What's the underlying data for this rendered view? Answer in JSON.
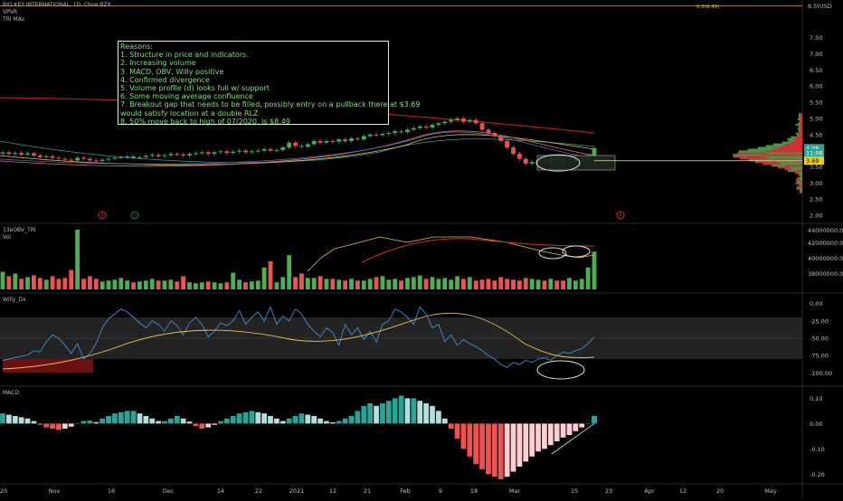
{
  "header": {
    "symbol_line": "BIO KEY INTERNATIONAL, 1D, Cboe BZX",
    "indicator1": "VPVR",
    "indicator2": "TRI MAs",
    "target_label": "0.5(8.49)"
  },
  "currency": "USD",
  "reasons": {
    "title": "Reasons:",
    "lines": [
      "1. Structure in price and indicators.",
      "2. Increasing volume",
      "3. MACD, OBV, Willy positive",
      "4. Confirmed divergence",
      "5. Volume profile (d) looks full w/ support",
      "6. Some moving average confluence",
      "7. Breakout gap that needs to be filled, possibly entry on a pullback there at $3.69",
      "would satisfy location at a double RLZ",
      "8. 50% move back to high of 07/2020, is $8.49"
    ]
  },
  "price_axis": {
    "top_label": "8.5(USD",
    "ticks": [
      "7.50",
      "7.00",
      "6.50",
      "6.00",
      "5.50",
      "5.00",
      "4.50",
      "4.00",
      "3.50",
      "3.00",
      "2.50",
      "2.00"
    ],
    "badges": [
      {
        "text": "4.08",
        "color": "#26a69a"
      },
      {
        "text": "11:08",
        "color": "#26a69a"
      },
      {
        "text": "3.69",
        "color": "#f5d000"
      }
    ]
  },
  "obv_panel": {
    "label1": "13eOBV_TRI",
    "label2": "Vol",
    "ticks": [
      "44000000.00",
      "42000000.00",
      "40000000.00",
      "38000000.00"
    ]
  },
  "willy_panel": {
    "label": "Willy_Dx",
    "ticks": [
      "0.00",
      "-25.00",
      "-50.00",
      "-75.00",
      "-100.00"
    ]
  },
  "macd_panel": {
    "label": "MACD",
    "ticks": [
      "0.10",
      "0.00",
      "-0.10",
      "-0.20"
    ]
  },
  "time_axis": [
    "20",
    "Nov",
    "16",
    "Dec",
    "14",
    "22",
    "2021",
    "12",
    "21",
    "Feb",
    "9",
    "18",
    "Mar",
    "15",
    "23",
    "Apr",
    "12",
    "20",
    "May"
  ],
  "event_markers": [
    "E",
    "D",
    "E"
  ],
  "colors": {
    "up": "#26a69a",
    "down": "#ef5350",
    "bright_up": "#4caf50",
    "note_text": "#7be37b"
  },
  "chart_data": [
    {
      "type": "candlestick",
      "series_name": "BIO KEY INTERNATIONAL",
      "y_range": [
        2.0,
        8.5
      ],
      "close": [
        3.95,
        3.9,
        3.93,
        3.88,
        3.92,
        3.85,
        3.8,
        3.83,
        3.78,
        3.75,
        3.72,
        3.7,
        3.78,
        3.75,
        3.7,
        3.68,
        3.72,
        3.75,
        3.78,
        3.8,
        3.82,
        3.78,
        3.8,
        3.84,
        3.87,
        3.83,
        3.86,
        3.9,
        3.88,
        3.85,
        3.9,
        3.92,
        3.95,
        3.9,
        3.95,
        3.98,
        3.93,
        3.97,
        4.0,
        3.95,
        3.98,
        4.0,
        4.05,
        4.0,
        4.02,
        4.1,
        4.25,
        4.15,
        4.12,
        4.2,
        4.3,
        4.25,
        4.3,
        4.28,
        4.35,
        4.3,
        4.38,
        4.35,
        4.45,
        4.5,
        4.48,
        4.52,
        4.55,
        4.6,
        4.58,
        4.65,
        4.7,
        4.75,
        4.72,
        4.8,
        4.85,
        4.9,
        4.95,
        5.0,
        4.9,
        4.95,
        4.85,
        4.65,
        4.55,
        4.45,
        4.3,
        4.1,
        3.9,
        3.75,
        3.6,
        3.65,
        3.7,
        3.68,
        3.75,
        3.72,
        3.68,
        3.7,
        3.72,
        3.75,
        3.85,
        4.08
      ],
      "moving_average_level": 5.5,
      "markers": [
        {
          "label": "$3.69 entry level",
          "value": 3.69
        },
        {
          "label": "0.5(8.49)",
          "value": 8.49
        }
      ]
    },
    {
      "type": "bar",
      "series_name": "Vol",
      "values": [
        2,
        1.5,
        1.8,
        1.2,
        1.4,
        1.6,
        1.3,
        1.1,
        1.5,
        1.2,
        1.3,
        2.2,
        6.8,
        1.2,
        1.5,
        1.2,
        0.9,
        1,
        1.1,
        1.3,
        1,
        0.8,
        0.9,
        1,
        1.2,
        1,
        1,
        1.1,
        0.9,
        1.5,
        0.8,
        0.7,
        0.8,
        0.9,
        0.8,
        0.7,
        0.8,
        1.9,
        1.1,
        0.8,
        0.9,
        1,
        2.5,
        3.2,
        0.8,
        1.4,
        3.9,
        1.4,
        1.8,
        1.3,
        1.3,
        1.5,
        1.2,
        1.2,
        1.1,
        1,
        1.2,
        1,
        1,
        1.2,
        1.4,
        1.5,
        1.1,
        1.2,
        1,
        1.3,
        1.4,
        1.6,
        1.2,
        1.4,
        1.2,
        1.3,
        1.1,
        1.5,
        1.2,
        1.4,
        1,
        1.1,
        1.2,
        1,
        1.4,
        1.2,
        1.1,
        1,
        1.3,
        1.2,
        1.1,
        1,
        1.2,
        1,
        1,
        1.3,
        1,
        1.2,
        2.5,
        4.3
      ]
    },
    {
      "type": "line",
      "series_name": "Willy_Dx",
      "y_range": [
        -110,
        10
      ],
      "values": [
        -82,
        -80,
        -78,
        -76,
        -74,
        -68,
        -70,
        -55,
        -45,
        -50,
        -60,
        -72,
        -58,
        -80,
        -72,
        -58,
        -35,
        -22,
        -15,
        -8,
        -12,
        -20,
        -28,
        -35,
        -25,
        -30,
        -40,
        -25,
        -32,
        -45,
        -28,
        -20,
        -30,
        -48,
        -40,
        -28,
        -32,
        -25,
        -10,
        -30,
        -20,
        -12,
        -25,
        -5,
        -30,
        -18,
        -25,
        -8,
        -15,
        -30,
        -40,
        -48,
        -35,
        -42,
        -60,
        -30,
        -45,
        -35,
        -52,
        -40,
        -55,
        -30,
        -25,
        -8,
        -12,
        -20,
        -30,
        -5,
        -15,
        -35,
        -30,
        -55,
        -45,
        -60,
        -52,
        -58,
        -62,
        -68,
        -75,
        -80,
        -88,
        -92,
        -85,
        -88,
        -82,
        -85,
        -80,
        -78,
        -82,
        -75,
        -70,
        -72,
        -68,
        -65,
        -58,
        -48
      ]
    },
    {
      "type": "bar",
      "series_name": "MACD",
      "y_range": [
        -0.22,
        0.13
      ],
      "values": [
        0.04,
        0.035,
        0.03,
        0.025,
        0.02,
        0.01,
        -0.005,
        -0.015,
        -0.02,
        -0.025,
        -0.02,
        -0.012,
        0.002,
        0.01,
        0.012,
        0.006,
        0.02,
        0.03,
        0.04,
        0.045,
        0.05,
        0.05,
        0.04,
        0.03,
        0.02,
        0.01,
        0.01,
        0.02,
        0.03,
        0.02,
        0.008,
        -0.01,
        -0.02,
        -0.015,
        -0.005,
        0.01,
        0.02,
        0.03,
        0.04,
        0.045,
        0.05,
        0.045,
        0.04,
        0.03,
        0.02,
        0.01,
        0.02,
        0.03,
        0.04,
        0.035,
        0.03,
        0.02,
        0.01,
        0.005,
        0.01,
        0.02,
        0.03,
        0.05,
        0.07,
        0.08,
        0.07,
        0.08,
        0.09,
        0.1,
        0.11,
        0.1,
        0.1,
        0.09,
        0.08,
        0.07,
        0.05,
        0.02,
        -0.02,
        -0.06,
        -0.1,
        -0.13,
        -0.16,
        -0.18,
        -0.2,
        -0.21,
        -0.22,
        -0.21,
        -0.19,
        -0.17,
        -0.15,
        -0.13,
        -0.11,
        -0.1,
        -0.085,
        -0.07,
        -0.055,
        -0.045,
        -0.03,
        -0.015,
        0.0,
        0.03
      ]
    }
  ]
}
